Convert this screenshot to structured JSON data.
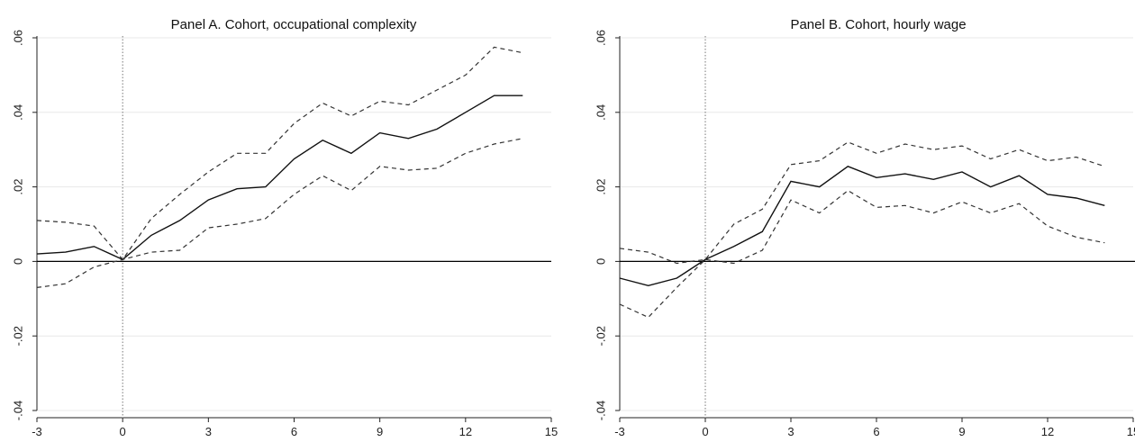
{
  "chart_data": [
    {
      "id": "panel-a",
      "type": "line",
      "title": "Panel A. Cohort, occupational complexity",
      "xlim": [
        -3,
        15
      ],
      "ylim": [
        -0.04,
        0.06
      ],
      "x_ticks": [
        -3,
        0,
        3,
        6,
        9,
        12,
        15
      ],
      "x_tick_labels": [
        "-3",
        "0",
        "3",
        "6",
        "9",
        "12",
        "15"
      ],
      "y_ticks": [
        -0.04,
        -0.02,
        0,
        0.02,
        0.04,
        0.06
      ],
      "y_tick_labels": [
        "-.04",
        "-.02",
        "0",
        ".02",
        ".04",
        ".06"
      ],
      "event_time": 0,
      "grid": true,
      "x": [
        -3,
        -2,
        -1,
        0,
        1,
        2,
        3,
        4,
        5,
        6,
        7,
        8,
        9,
        10,
        11,
        12,
        13,
        14
      ],
      "series": [
        {
          "role": "upper",
          "values": [
            0.011,
            0.0105,
            0.0095,
            0.0005,
            0.0115,
            0.018,
            0.024,
            0.029,
            0.029,
            0.037,
            0.0425,
            0.039,
            0.043,
            0.042,
            0.046,
            0.05,
            0.0575,
            0.056
          ]
        },
        {
          "role": "estimate",
          "values": [
            0.002,
            0.0025,
            0.004,
            0.0005,
            0.007,
            0.011,
            0.0165,
            0.0195,
            0.02,
            0.0275,
            0.0325,
            0.029,
            0.0345,
            0.033,
            0.0355,
            0.04,
            0.0445,
            0.0445
          ]
        },
        {
          "role": "lower",
          "values": [
            -0.007,
            -0.006,
            -0.0015,
            0.0005,
            0.0025,
            0.003,
            0.009,
            0.01,
            0.0115,
            0.018,
            0.023,
            0.019,
            0.0255,
            0.0245,
            0.025,
            0.029,
            0.0315,
            0.033
          ]
        }
      ]
    },
    {
      "id": "panel-b",
      "type": "line",
      "title": "Panel B. Cohort, hourly wage",
      "xlim": [
        -3,
        15
      ],
      "ylim": [
        -0.04,
        0.06
      ],
      "x_ticks": [
        -3,
        0,
        3,
        6,
        9,
        12,
        15
      ],
      "x_tick_labels": [
        "-3",
        "0",
        "3",
        "6",
        "9",
        "12",
        "15"
      ],
      "y_ticks": [
        -0.04,
        -0.02,
        0,
        0.02,
        0.04,
        0.06
      ],
      "y_tick_labels": [
        "-.04",
        "-.02",
        "0",
        ".02",
        ".04",
        ".06"
      ],
      "event_time": 0,
      "grid": true,
      "x": [
        -3,
        -2,
        -1,
        0,
        1,
        2,
        3,
        4,
        5,
        6,
        7,
        8,
        9,
        10,
        11,
        12,
        13,
        14
      ],
      "series": [
        {
          "role": "upper",
          "values": [
            0.0035,
            0.0025,
            -0.0005,
            0.0005,
            0.01,
            0.014,
            0.026,
            0.027,
            0.032,
            0.029,
            0.0315,
            0.03,
            0.031,
            0.0275,
            0.03,
            0.027,
            0.028,
            0.0255
          ]
        },
        {
          "role": "estimate",
          "values": [
            -0.0045,
            -0.0065,
            -0.0045,
            0.0005,
            0.004,
            0.008,
            0.0215,
            0.02,
            0.0255,
            0.0225,
            0.0235,
            0.022,
            0.024,
            0.02,
            0.023,
            0.018,
            0.017,
            0.015
          ]
        },
        {
          "role": "lower",
          "values": [
            -0.0115,
            -0.015,
            -0.007,
            0.0005,
            -0.0005,
            0.003,
            0.0165,
            0.013,
            0.019,
            0.0145,
            0.015,
            0.013,
            0.016,
            0.013,
            0.0155,
            0.0095,
            0.0065,
            0.005
          ]
        }
      ]
    }
  ]
}
